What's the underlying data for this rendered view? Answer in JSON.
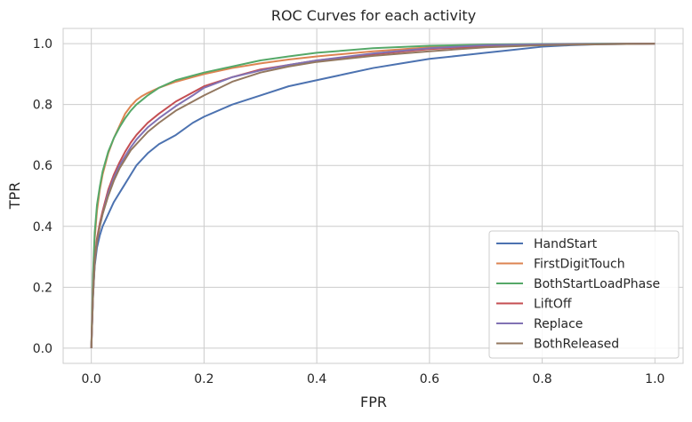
{
  "chart_data": {
    "type": "line",
    "title": "ROC Curves for each activity",
    "xlabel": "FPR",
    "ylabel": "TPR",
    "xlim": [
      -0.05,
      1.05
    ],
    "ylim": [
      -0.05,
      1.05
    ],
    "xticks": [
      0.0,
      0.2,
      0.4,
      0.6,
      0.8,
      1.0
    ],
    "yticks": [
      0.0,
      0.2,
      0.4,
      0.6,
      0.8,
      1.0
    ],
    "xtick_labels": [
      "0.0",
      "0.2",
      "0.4",
      "0.6",
      "0.8",
      "1.0"
    ],
    "ytick_labels": [
      "0.0",
      "0.2",
      "0.4",
      "0.6",
      "0.8",
      "1.0"
    ],
    "grid": true,
    "legend_position": "lower-right",
    "series": [
      {
        "name": "HandStart",
        "color": "#4c72b0",
        "x": [
          0,
          0.003,
          0.006,
          0.01,
          0.015,
          0.02,
          0.03,
          0.04,
          0.05,
          0.06,
          0.07,
          0.08,
          0.09,
          0.1,
          0.12,
          0.15,
          0.18,
          0.2,
          0.25,
          0.3,
          0.35,
          0.4,
          0.45,
          0.5,
          0.55,
          0.6,
          0.65,
          0.7,
          0.75,
          0.8,
          0.85,
          0.9,
          0.95,
          1.0
        ],
        "y": [
          0,
          0.17,
          0.27,
          0.33,
          0.37,
          0.4,
          0.44,
          0.48,
          0.51,
          0.54,
          0.57,
          0.6,
          0.62,
          0.64,
          0.67,
          0.7,
          0.74,
          0.76,
          0.8,
          0.83,
          0.86,
          0.88,
          0.9,
          0.92,
          0.935,
          0.95,
          0.96,
          0.97,
          0.98,
          0.99,
          0.995,
          0.998,
          0.999,
          1.0
        ]
      },
      {
        "name": "FirstDigitTouch",
        "color": "#dd8452",
        "x": [
          0,
          0.003,
          0.006,
          0.01,
          0.015,
          0.02,
          0.03,
          0.04,
          0.05,
          0.06,
          0.07,
          0.08,
          0.09,
          0.1,
          0.12,
          0.15,
          0.18,
          0.2,
          0.25,
          0.3,
          0.35,
          0.4,
          0.5,
          0.6,
          0.7,
          0.8,
          0.9,
          1.0
        ],
        "y": [
          0,
          0.22,
          0.36,
          0.45,
          0.52,
          0.57,
          0.64,
          0.69,
          0.73,
          0.77,
          0.795,
          0.815,
          0.828,
          0.838,
          0.855,
          0.875,
          0.89,
          0.9,
          0.92,
          0.935,
          0.948,
          0.958,
          0.975,
          0.988,
          0.995,
          0.998,
          0.999,
          1.0
        ]
      },
      {
        "name": "BothStartLoadPhase",
        "color": "#55a868",
        "x": [
          0,
          0.003,
          0.006,
          0.01,
          0.015,
          0.02,
          0.03,
          0.04,
          0.05,
          0.06,
          0.07,
          0.08,
          0.09,
          0.1,
          0.12,
          0.15,
          0.18,
          0.2,
          0.25,
          0.3,
          0.35,
          0.4,
          0.5,
          0.6,
          0.7,
          0.8,
          0.9,
          1.0
        ],
        "y": [
          0,
          0.24,
          0.38,
          0.47,
          0.53,
          0.58,
          0.645,
          0.69,
          0.725,
          0.755,
          0.78,
          0.8,
          0.815,
          0.83,
          0.855,
          0.88,
          0.895,
          0.905,
          0.925,
          0.945,
          0.958,
          0.97,
          0.985,
          0.993,
          0.997,
          0.999,
          1.0,
          1.0
        ]
      },
      {
        "name": "LiftOff",
        "color": "#c44e52",
        "x": [
          0,
          0.003,
          0.006,
          0.01,
          0.015,
          0.02,
          0.03,
          0.04,
          0.05,
          0.06,
          0.07,
          0.08,
          0.09,
          0.1,
          0.12,
          0.15,
          0.18,
          0.2,
          0.25,
          0.3,
          0.35,
          0.4,
          0.5,
          0.6,
          0.7,
          0.8,
          0.9,
          1.0
        ],
        "y": [
          0,
          0.18,
          0.29,
          0.36,
          0.41,
          0.45,
          0.52,
          0.57,
          0.61,
          0.645,
          0.675,
          0.7,
          0.72,
          0.74,
          0.77,
          0.81,
          0.84,
          0.86,
          0.89,
          0.915,
          0.93,
          0.945,
          0.965,
          0.982,
          0.992,
          0.997,
          0.999,
          1.0
        ]
      },
      {
        "name": "Replace",
        "color": "#8172b3",
        "x": [
          0,
          0.003,
          0.006,
          0.01,
          0.015,
          0.02,
          0.03,
          0.04,
          0.05,
          0.06,
          0.07,
          0.08,
          0.09,
          0.1,
          0.12,
          0.15,
          0.18,
          0.2,
          0.25,
          0.3,
          0.35,
          0.4,
          0.5,
          0.6,
          0.7,
          0.8,
          0.9,
          1.0
        ],
        "y": [
          0,
          0.17,
          0.28,
          0.35,
          0.4,
          0.44,
          0.51,
          0.56,
          0.6,
          0.63,
          0.66,
          0.685,
          0.705,
          0.725,
          0.755,
          0.795,
          0.83,
          0.855,
          0.89,
          0.912,
          0.93,
          0.945,
          0.968,
          0.985,
          0.995,
          0.998,
          0.999,
          1.0
        ]
      },
      {
        "name": "BothReleased",
        "color": "#937860",
        "x": [
          0,
          0.003,
          0.006,
          0.01,
          0.015,
          0.02,
          0.03,
          0.04,
          0.05,
          0.06,
          0.07,
          0.08,
          0.09,
          0.1,
          0.12,
          0.15,
          0.18,
          0.2,
          0.25,
          0.3,
          0.35,
          0.4,
          0.5,
          0.6,
          0.7,
          0.8,
          0.9,
          1.0
        ],
        "y": [
          0,
          0.17,
          0.28,
          0.35,
          0.4,
          0.44,
          0.5,
          0.55,
          0.59,
          0.62,
          0.65,
          0.67,
          0.69,
          0.71,
          0.74,
          0.78,
          0.81,
          0.83,
          0.875,
          0.905,
          0.925,
          0.94,
          0.96,
          0.975,
          0.988,
          0.995,
          0.998,
          1.0
        ]
      }
    ]
  }
}
